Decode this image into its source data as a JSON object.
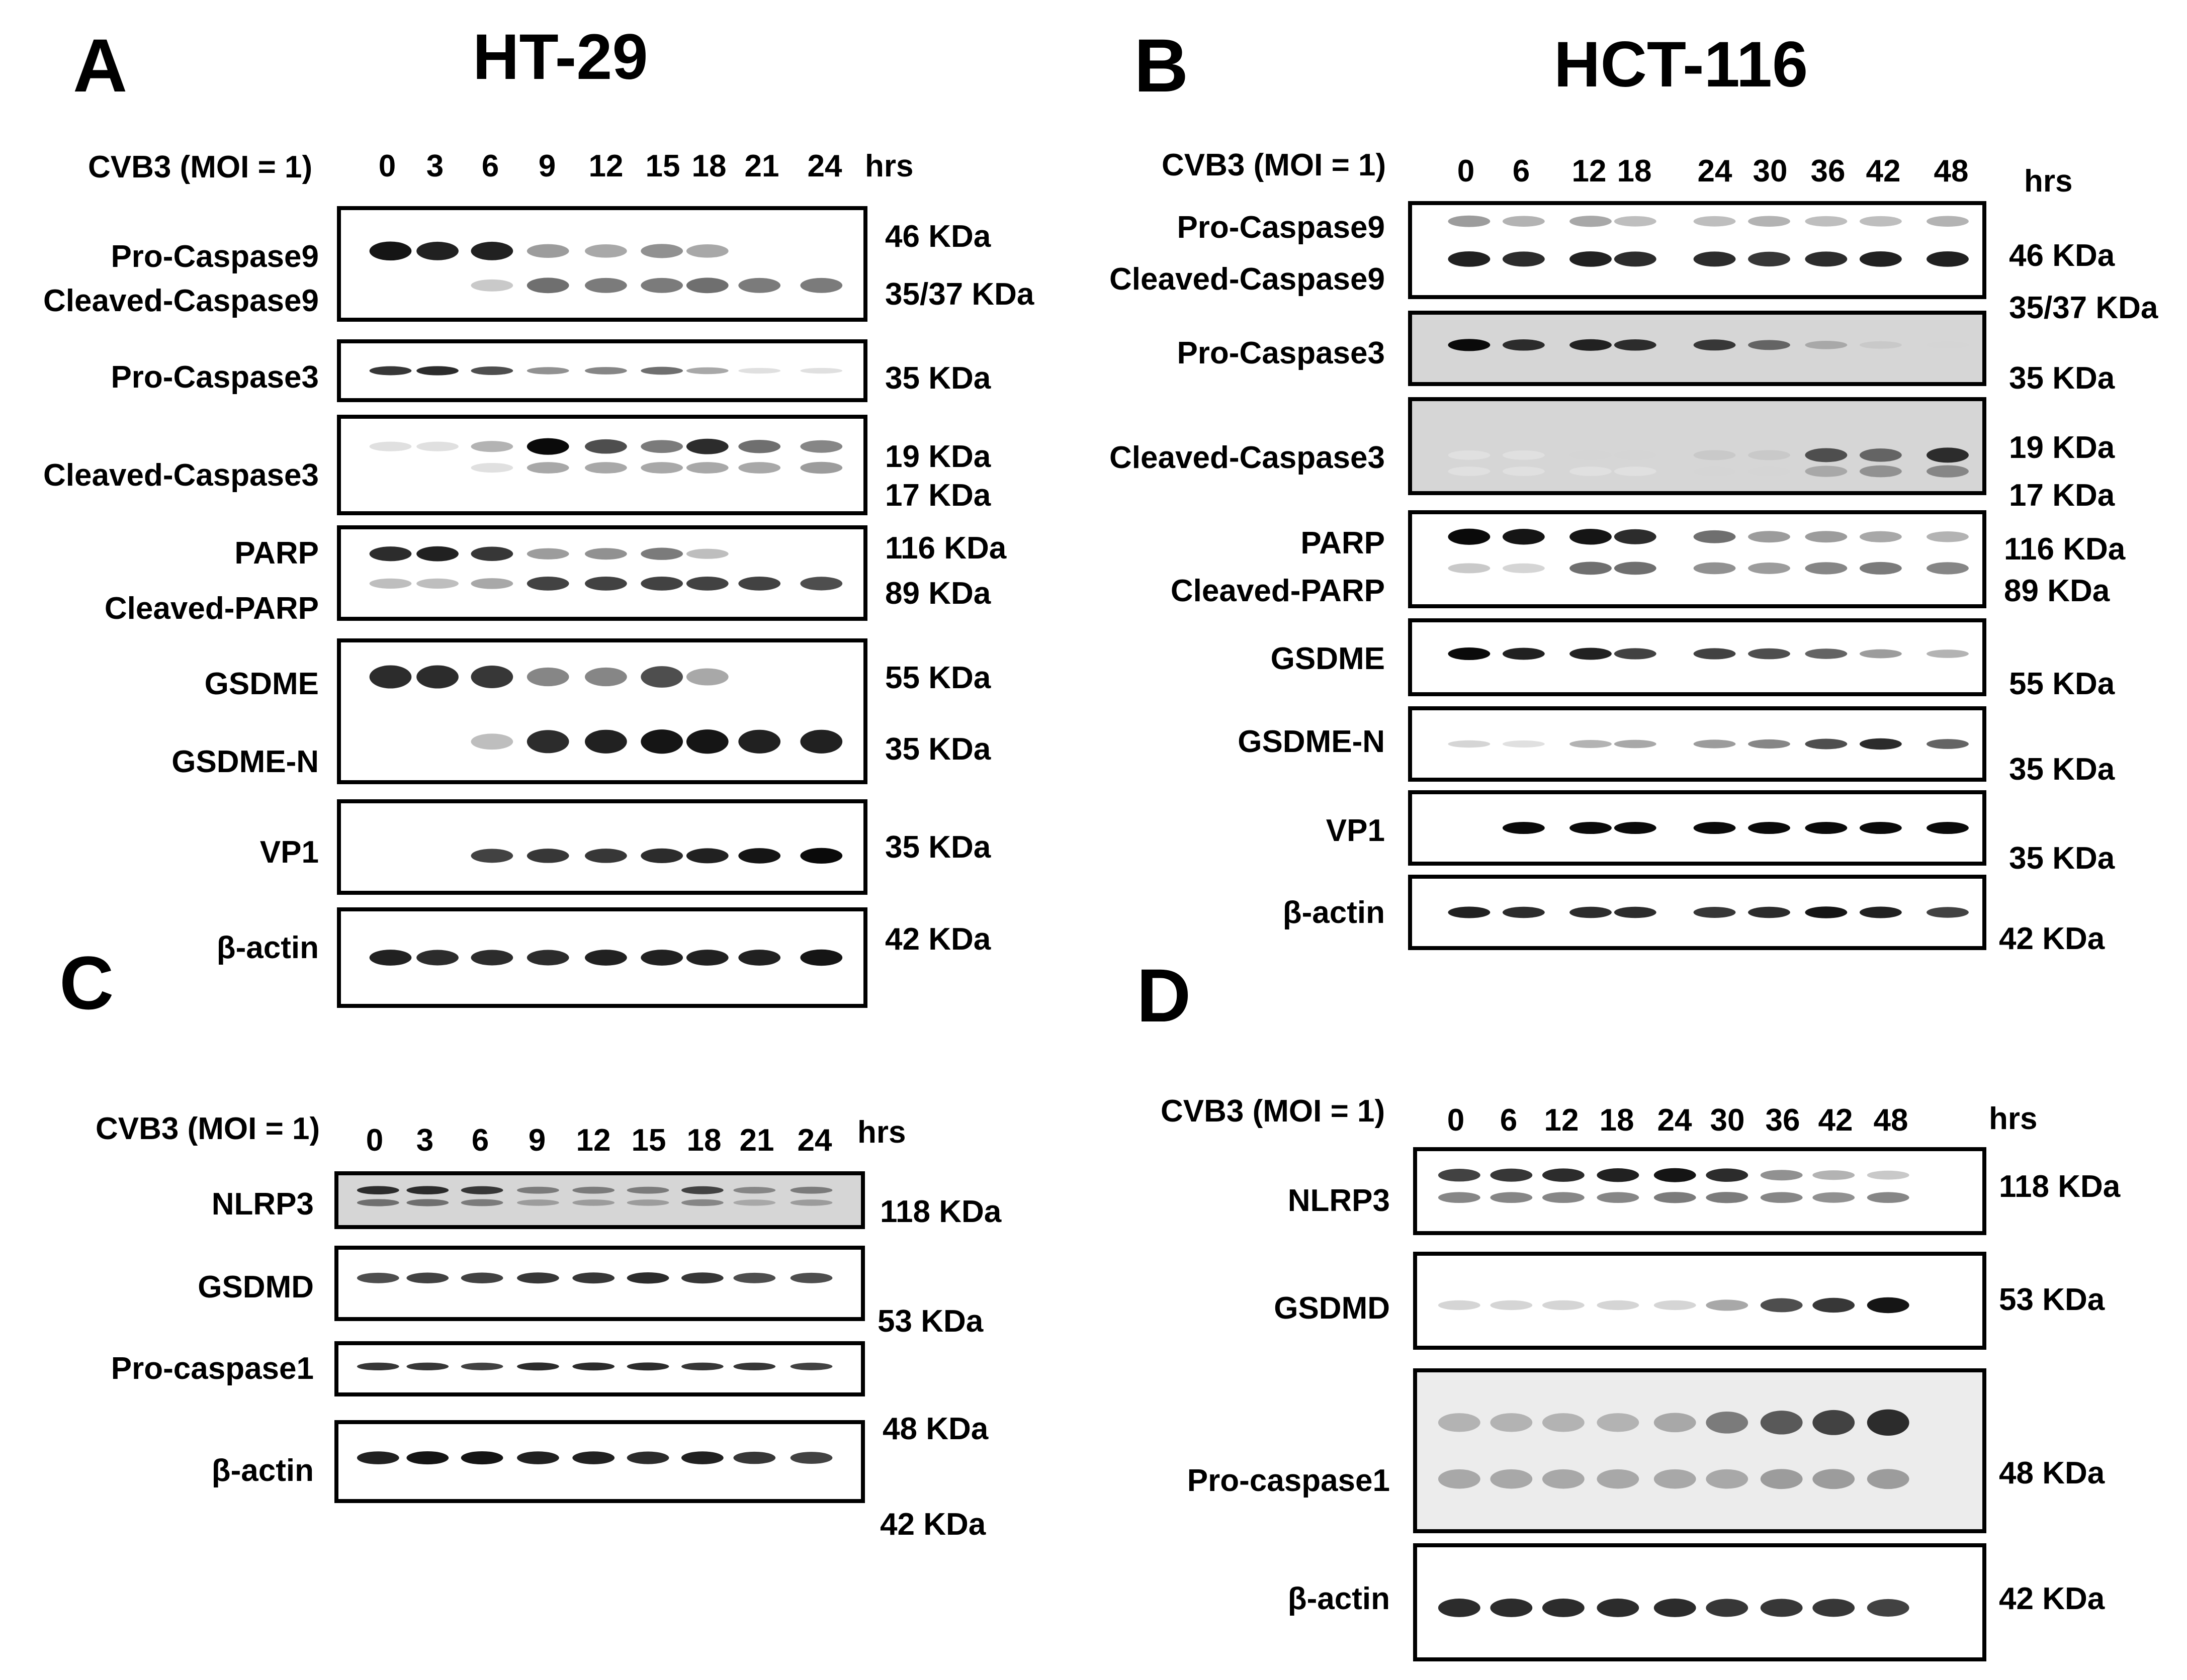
{
  "panels": {
    "A": {
      "letter": "A",
      "cell_line": "HT-29",
      "condition": "CVB3 (MOI = 1)",
      "timepoints": [
        "0",
        "3",
        "6",
        "9",
        "12",
        "15",
        "18",
        "21",
        "24"
      ],
      "unit": "hrs",
      "blots": [
        {
          "labels": [
            "Pro-Caspase9",
            "Cleaved-Caspase9"
          ],
          "sizes": [
            "46 KDa",
            "35/37 KDa"
          ]
        },
        {
          "labels": [
            "Pro-Caspase3"
          ],
          "sizes": [
            "35 KDa"
          ]
        },
        {
          "labels": [
            "Cleaved-Caspase3"
          ],
          "sizes": [
            "19 KDa",
            "17 KDa"
          ]
        },
        {
          "labels": [
            "PARP",
            "Cleaved-PARP"
          ],
          "sizes": [
            "116 KDa",
            "89 KDa"
          ]
        },
        {
          "labels": [
            "GSDME",
            "GSDME-N"
          ],
          "sizes": [
            "55 KDa",
            "35 KDa"
          ]
        },
        {
          "labels": [
            "VP1"
          ],
          "sizes": [
            "35 KDa"
          ]
        },
        {
          "labels": [
            "β-actin"
          ],
          "sizes": [
            "42 KDa"
          ]
        }
      ]
    },
    "B": {
      "letter": "B",
      "cell_line": "HCT-116",
      "condition": "CVB3 (MOI = 1)",
      "timepoints": [
        "0",
        "6",
        "12",
        "18",
        "24",
        "30",
        "36",
        "42",
        "48"
      ],
      "unit": "hrs",
      "blots": [
        {
          "labels": [
            "Pro-Caspase9",
            "Cleaved-Caspase9"
          ],
          "sizes": [
            "46 KDa",
            "35/37 KDa"
          ]
        },
        {
          "labels": [
            "Pro-Caspase3"
          ],
          "sizes": [
            "35 KDa"
          ]
        },
        {
          "labels": [
            "Cleaved-Caspase3"
          ],
          "sizes": [
            "19 KDa",
            "17 KDa"
          ]
        },
        {
          "labels": [
            "PARP",
            "Cleaved-PARP"
          ],
          "sizes": [
            "116 KDa",
            "89 KDa"
          ]
        },
        {
          "labels": [
            "GSDME"
          ],
          "sizes": [
            "55 KDa"
          ]
        },
        {
          "labels": [
            "GSDME-N"
          ],
          "sizes": [
            "35 KDa"
          ]
        },
        {
          "labels": [
            "VP1"
          ],
          "sizes": [
            "35 KDa"
          ]
        },
        {
          "labels": [
            "β-actin"
          ],
          "sizes": [
            "42 KDa"
          ]
        }
      ]
    },
    "C": {
      "letter": "C",
      "condition": "CVB3 (MOI = 1)",
      "timepoints": [
        "0",
        "3",
        "6",
        "9",
        "12",
        "15",
        "18",
        "21",
        "24"
      ],
      "unit": "hrs",
      "blots": [
        {
          "labels": [
            "NLRP3"
          ],
          "sizes": [
            "118 KDa"
          ]
        },
        {
          "labels": [
            "GSDMD"
          ],
          "sizes": [
            "53 KDa"
          ]
        },
        {
          "labels": [
            "Pro-caspase1"
          ],
          "sizes": [
            "48 KDa"
          ]
        },
        {
          "labels": [
            "β-actin"
          ],
          "sizes": [
            "42 KDa"
          ]
        }
      ]
    },
    "D": {
      "letter": "D",
      "condition": "CVB3 (MOI = 1)",
      "timepoints": [
        "0",
        "6",
        "12",
        "18",
        "24",
        "30",
        "36",
        "42",
        "48"
      ],
      "unit": "hrs",
      "blots": [
        {
          "labels": [
            "NLRP3"
          ],
          "sizes": [
            "118 KDa"
          ]
        },
        {
          "labels": [
            "GSDMD"
          ],
          "sizes": [
            "53 KDa"
          ]
        },
        {
          "labels": [
            "Pro-caspase1"
          ],
          "sizes": [
            "48 KDa"
          ]
        },
        {
          "labels": [
            "β-actin"
          ],
          "sizes": [
            "42 KDa"
          ]
        }
      ]
    }
  },
  "band_intensity": {
    "A": [
      [
        [
          0.95,
          0.9,
          0.9,
          0.35,
          0.3,
          0.4,
          0.3,
          0,
          0
        ],
        [
          0,
          0,
          0.15,
          0.55,
          0.5,
          0.5,
          0.55,
          0.5,
          0.5
        ]
      ],
      [
        [
          0.8,
          0.85,
          0.7,
          0.4,
          0.45,
          0.55,
          0.3,
          0.05,
          0.05
        ]
      ],
      [
        [
          0.05,
          0.05,
          0.25,
          1,
          0.7,
          0.5,
          0.85,
          0.55,
          0.45
        ],
        [
          0,
          0,
          0.05,
          0.3,
          0.3,
          0.3,
          0.3,
          0.3,
          0.35
        ]
      ],
      [
        [
          0.85,
          0.9,
          0.8,
          0.35,
          0.4,
          0.5,
          0.2,
          0,
          0
        ],
        [
          0.2,
          0.2,
          0.3,
          0.75,
          0.75,
          0.75,
          0.75,
          0.75,
          0.7
        ]
      ],
      [
        [
          0.85,
          0.85,
          0.8,
          0.45,
          0.45,
          0.7,
          0.3,
          0,
          0
        ],
        [
          0,
          0,
          0.2,
          0.85,
          0.9,
          0.95,
          0.95,
          0.9,
          0.9
        ]
      ],
      [
        [
          0,
          0,
          0.75,
          0.8,
          0.8,
          0.85,
          0.9,
          0.95,
          1
        ]
      ],
      [
        [
          0.9,
          0.85,
          0.85,
          0.85,
          0.9,
          0.9,
          0.9,
          0.9,
          0.95
        ]
      ]
    ],
    "B": [
      [
        [
          0.35,
          0.25,
          0.3,
          0.2,
          0.2,
          0.25,
          0.2,
          0.2,
          0.25
        ],
        [
          0.9,
          0.85,
          0.9,
          0.85,
          0.85,
          0.8,
          0.85,
          0.9,
          0.9
        ]
      ],
      [
        [
          1,
          0.85,
          0.9,
          0.85,
          0.8,
          0.6,
          0.3,
          0.15,
          0.1
        ]
      ],
      [
        [
          0.05,
          0.05,
          0.1,
          0.1,
          0.15,
          0.15,
          0.7,
          0.6,
          0.85
        ],
        [
          0.05,
          0.05,
          0.05,
          0.05,
          0.1,
          0.1,
          0.3,
          0.4,
          0.45
        ]
      ],
      [
        [
          1,
          0.95,
          0.95,
          0.85,
          0.55,
          0.35,
          0.35,
          0.3,
          0.25
        ],
        [
          0.15,
          0.1,
          0.55,
          0.55,
          0.4,
          0.35,
          0.45,
          0.5,
          0.45
        ]
      ],
      [
        [
          1,
          0.9,
          0.9,
          0.75,
          0.75,
          0.7,
          0.6,
          0.35,
          0.25
        ]
      ],
      [
        [
          0.1,
          0.05,
          0.25,
          0.3,
          0.35,
          0.45,
          0.7,
          0.85,
          0.6
        ]
      ],
      [
        [
          0,
          1,
          1,
          1,
          1,
          1,
          1,
          1,
          1
        ]
      ],
      [
        [
          0.9,
          0.85,
          0.85,
          0.85,
          0.8,
          0.85,
          0.95,
          0.9,
          0.75
        ]
      ]
    ],
    "C": [
      [
        [
          0.85,
          0.85,
          0.8,
          0.5,
          0.5,
          0.5,
          0.75,
          0.45,
          0.5
        ],
        [
          0.55,
          0.55,
          0.5,
          0.35,
          0.35,
          0.35,
          0.45,
          0.3,
          0.35
        ]
      ],
      [
        [
          0.7,
          0.75,
          0.75,
          0.8,
          0.8,
          0.85,
          0.8,
          0.7,
          0.7
        ]
      ],
      [
        [
          0.8,
          0.8,
          0.75,
          0.85,
          0.85,
          0.85,
          0.8,
          0.8,
          0.75
        ]
      ],
      [
        [
          0.9,
          0.95,
          0.95,
          0.9,
          0.9,
          0.85,
          0.9,
          0.8,
          0.75
        ]
      ]
    ],
    "D": [
      [
        [
          0.75,
          0.8,
          0.85,
          0.9,
          0.95,
          0.85,
          0.4,
          0.25,
          0.15
        ],
        [
          0.45,
          0.45,
          0.45,
          0.45,
          0.5,
          0.5,
          0.45,
          0.4,
          0.45
        ]
      ],
      [
        [
          0.1,
          0.1,
          0.1,
          0.1,
          0.1,
          0.3,
          0.7,
          0.8,
          0.95
        ]
      ],
      [
        [
          0.25,
          0.25,
          0.25,
          0.25,
          0.3,
          0.5,
          0.65,
          0.75,
          0.85
        ],
        [
          0.3,
          0.3,
          0.3,
          0.3,
          0.3,
          0.3,
          0.35,
          0.35,
          0.35
        ]
      ],
      [
        [
          0.85,
          0.85,
          0.85,
          0.85,
          0.85,
          0.8,
          0.8,
          0.8,
          0.75
        ]
      ]
    ]
  }
}
